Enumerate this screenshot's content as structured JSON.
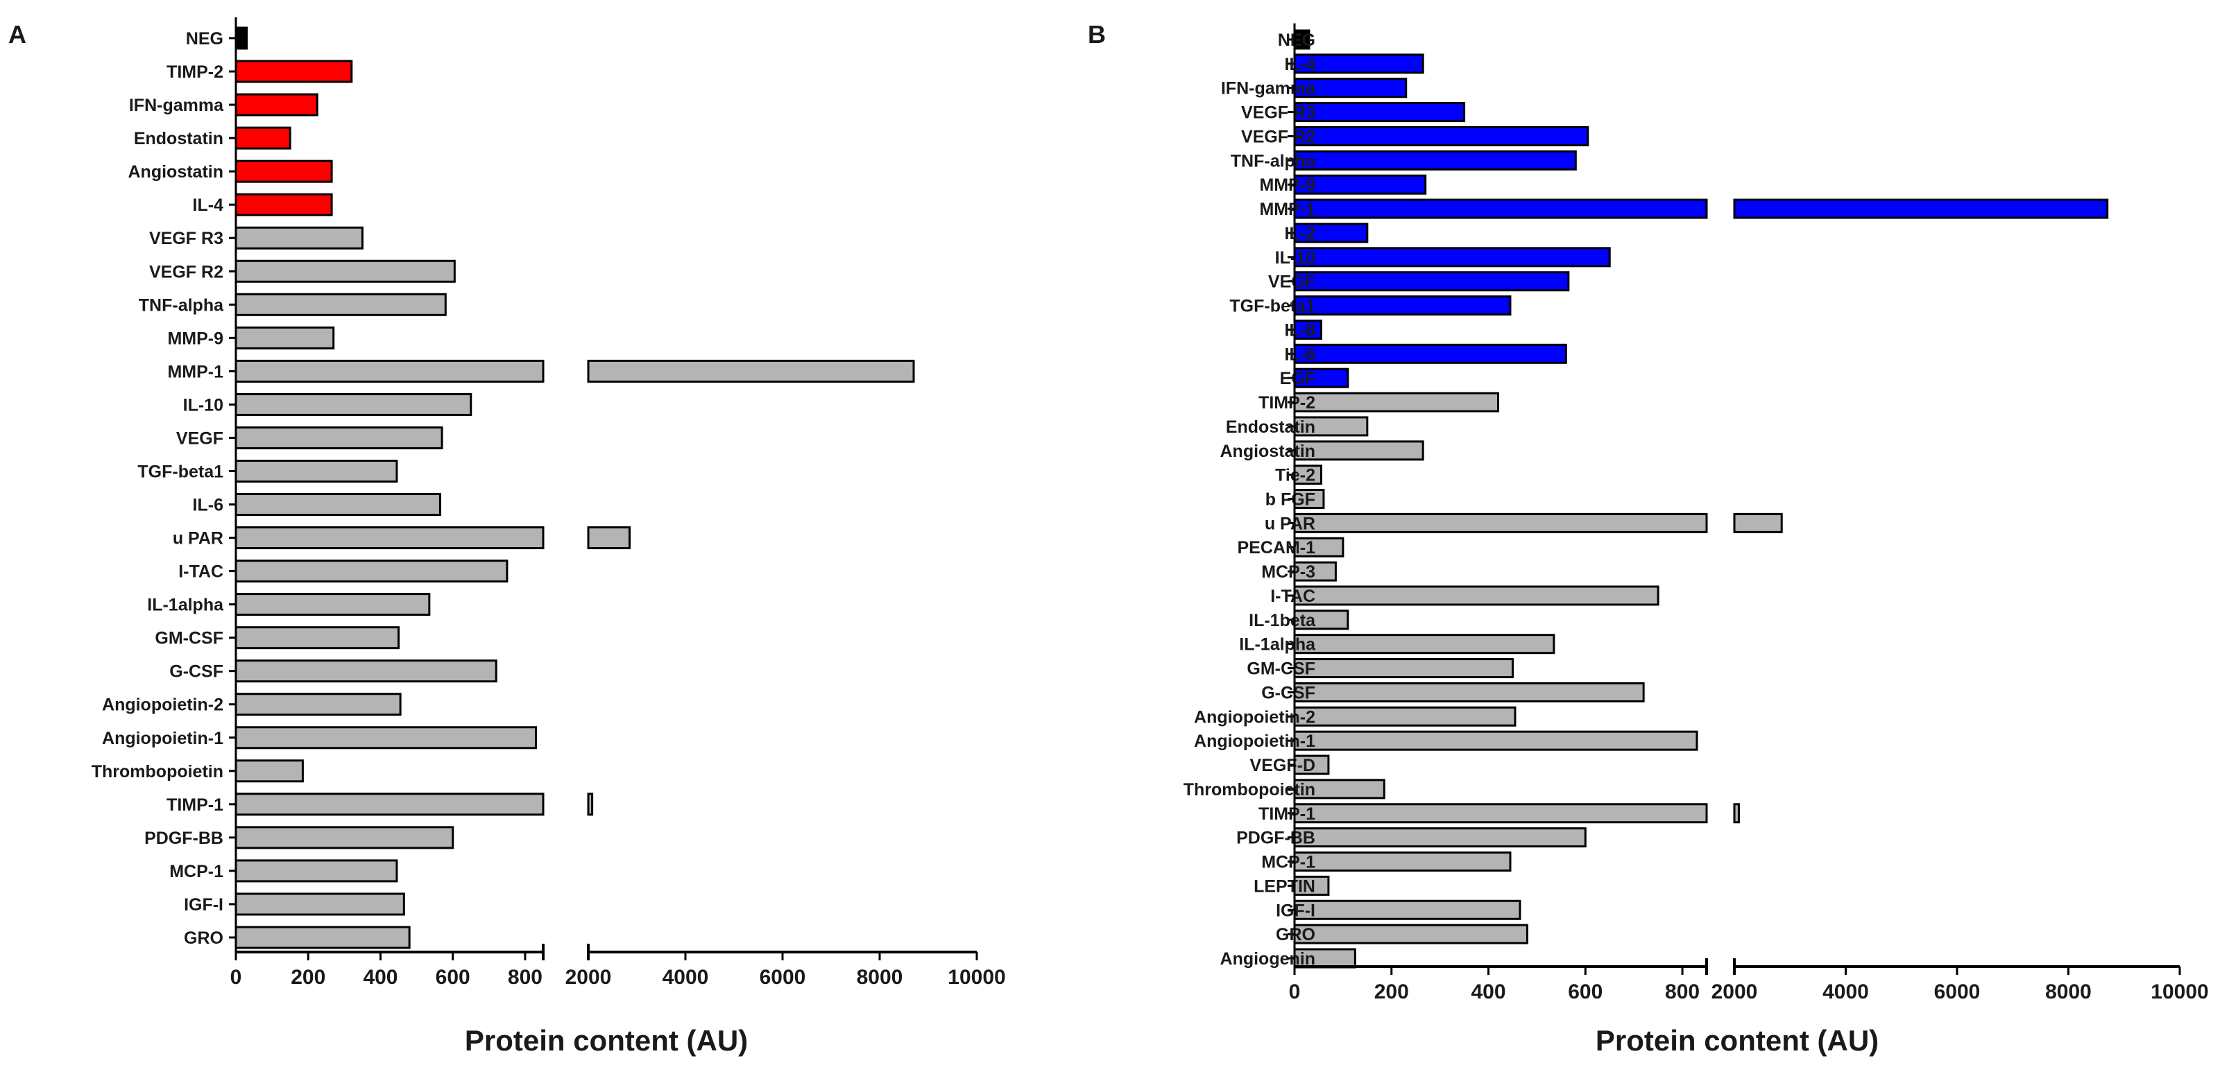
{
  "figure": {
    "colors": {
      "black": "#000000",
      "red": "#ff0000",
      "blue": "#0000ff",
      "grey": "#b4b4b4"
    }
  },
  "chart_data": [
    {
      "panel": "A",
      "type": "bar",
      "orientation": "horizontal",
      "xlabel": "Protein content (AU)",
      "axis_segments": [
        {
          "range": [
            0,
            850
          ],
          "ticks": [
            0,
            200,
            400,
            600,
            800
          ],
          "tick_labels": [
            "0",
            "200",
            "400",
            "600",
            "800"
          ]
        },
        {
          "range": [
            2000,
            10000
          ],
          "ticks": [
            2000,
            4000,
            6000,
            8000,
            10000
          ],
          "tick_labels": [
            "2000",
            "4000",
            "6000",
            "8000",
            "10000"
          ]
        }
      ],
      "bars": [
        {
          "label": "NEG",
          "value": 30,
          "color": "black"
        },
        {
          "label": "TIMP-2",
          "value": 320,
          "color": "red"
        },
        {
          "label": "IFN-gamma",
          "value": 225,
          "color": "red"
        },
        {
          "label": "Endostatin",
          "value": 150,
          "color": "red"
        },
        {
          "label": "Angiostatin",
          "value": 265,
          "color": "red"
        },
        {
          "label": "IL-4",
          "value": 265,
          "color": "red"
        },
        {
          "label": "VEGF R3",
          "value": 350,
          "color": "grey"
        },
        {
          "label": "VEGF R2",
          "value": 605,
          "color": "grey"
        },
        {
          "label": "TNF-alpha",
          "value": 580,
          "color": "grey"
        },
        {
          "label": "MMP-9",
          "value": 270,
          "color": "grey"
        },
        {
          "label": "MMP-1",
          "value": 8700,
          "color": "grey"
        },
        {
          "label": "IL-10",
          "value": 650,
          "color": "grey"
        },
        {
          "label": "VEGF",
          "value": 570,
          "color": "grey"
        },
        {
          "label": "TGF-beta1",
          "value": 445,
          "color": "grey"
        },
        {
          "label": "IL-6",
          "value": 565,
          "color": "grey"
        },
        {
          "label": "u PAR",
          "value": 2850,
          "color": "grey"
        },
        {
          "label": "I-TAC",
          "value": 750,
          "color": "grey"
        },
        {
          "label": "IL-1alpha",
          "value": 535,
          "color": "grey"
        },
        {
          "label": "GM-CSF",
          "value": 450,
          "color": "grey"
        },
        {
          "label": "G-CSF",
          "value": 720,
          "color": "grey"
        },
        {
          "label": "Angiopoietin-2",
          "value": 455,
          "color": "grey"
        },
        {
          "label": "Angiopoietin-1",
          "value": 830,
          "color": "grey"
        },
        {
          "label": "Thrombopoietin",
          "value": 185,
          "color": "grey"
        },
        {
          "label": "TIMP-1",
          "value": 2080,
          "color": "grey"
        },
        {
          "label": "PDGF-BB",
          "value": 600,
          "color": "grey"
        },
        {
          "label": "MCP-1",
          "value": 445,
          "color": "grey"
        },
        {
          "label": "IGF-I",
          "value": 465,
          "color": "grey"
        },
        {
          "label": "GRO",
          "value": 480,
          "color": "grey"
        }
      ]
    },
    {
      "panel": "B",
      "type": "bar",
      "orientation": "horizontal",
      "xlabel": "Protein content (AU)",
      "axis_segments": [
        {
          "range": [
            0,
            850
          ],
          "ticks": [
            0,
            200,
            400,
            600,
            800
          ],
          "tick_labels": [
            "0",
            "200",
            "400",
            "600",
            "800"
          ]
        },
        {
          "range": [
            2000,
            10000
          ],
          "ticks": [
            2000,
            4000,
            6000,
            8000,
            10000
          ],
          "tick_labels": [
            "2000",
            "4000",
            "6000",
            "8000",
            "10000"
          ]
        }
      ],
      "bars": [
        {
          "label": "NEG",
          "value": 30,
          "color": "black"
        },
        {
          "label": "IL-4",
          "value": 265,
          "color": "blue"
        },
        {
          "label": "IFN-gamma",
          "value": 230,
          "color": "blue"
        },
        {
          "label": "VEGF R3",
          "value": 350,
          "color": "blue"
        },
        {
          "label": "VEGF R2",
          "value": 605,
          "color": "blue"
        },
        {
          "label": "TNF-alpha",
          "value": 580,
          "color": "blue"
        },
        {
          "label": "MMP-9",
          "value": 270,
          "color": "blue"
        },
        {
          "label": "MMP-1",
          "value": 8700,
          "color": "blue"
        },
        {
          "label": "IL-2",
          "value": 150,
          "color": "blue"
        },
        {
          "label": "IL-10",
          "value": 650,
          "color": "blue"
        },
        {
          "label": "VEGF",
          "value": 565,
          "color": "blue"
        },
        {
          "label": "TGF-beta1",
          "value": 445,
          "color": "blue"
        },
        {
          "label": "IL-8",
          "value": 55,
          "color": "blue"
        },
        {
          "label": "IL-6",
          "value": 560,
          "color": "blue"
        },
        {
          "label": "EGF",
          "value": 110,
          "color": "blue"
        },
        {
          "label": "TIMP-2",
          "value": 420,
          "color": "grey"
        },
        {
          "label": "Endostatin",
          "value": 150,
          "color": "grey"
        },
        {
          "label": "Angiostatin",
          "value": 265,
          "color": "grey"
        },
        {
          "label": "Tie-2",
          "value": 55,
          "color": "grey"
        },
        {
          "label": "b FGF",
          "value": 60,
          "color": "grey"
        },
        {
          "label": "u PAR",
          "value": 2850,
          "color": "grey"
        },
        {
          "label": "PECAM-1",
          "value": 100,
          "color": "grey"
        },
        {
          "label": "MCP-3",
          "value": 85,
          "color": "grey"
        },
        {
          "label": "I-TAC",
          "value": 750,
          "color": "grey"
        },
        {
          "label": "IL-1beta",
          "value": 110,
          "color": "grey"
        },
        {
          "label": "IL-1alpha",
          "value": 535,
          "color": "grey"
        },
        {
          "label": "GM-CSF",
          "value": 450,
          "color": "grey"
        },
        {
          "label": "G-CSF",
          "value": 720,
          "color": "grey"
        },
        {
          "label": "Angiopoietin-2",
          "value": 455,
          "color": "grey"
        },
        {
          "label": "Angiopoietin-1",
          "value": 830,
          "color": "grey"
        },
        {
          "label": "VEGF-D",
          "value": 70,
          "color": "grey"
        },
        {
          "label": "Thrombopoietin",
          "value": 185,
          "color": "grey"
        },
        {
          "label": "TIMP-1",
          "value": 2080,
          "color": "grey"
        },
        {
          "label": "PDGF-BB",
          "value": 600,
          "color": "grey"
        },
        {
          "label": "MCP-1",
          "value": 445,
          "color": "grey"
        },
        {
          "label": "LEPTIN",
          "value": 70,
          "color": "grey"
        },
        {
          "label": "IGF-I",
          "value": 465,
          "color": "grey"
        },
        {
          "label": "GRO",
          "value": 480,
          "color": "grey"
        },
        {
          "label": "Angiogenin",
          "value": 125,
          "color": "grey"
        }
      ]
    }
  ]
}
